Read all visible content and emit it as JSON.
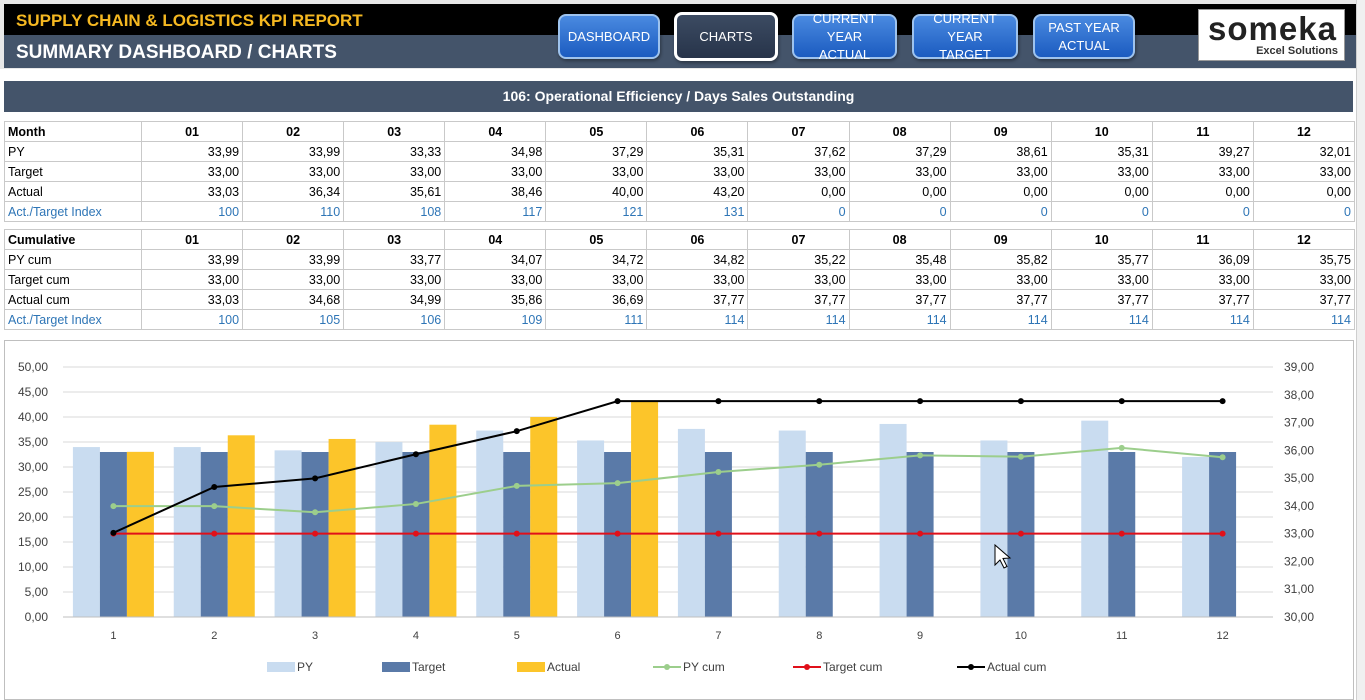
{
  "header": {
    "report_title": "SUPPLY CHAIN & LOGISTICS KPI REPORT",
    "page_title": "SUMMARY DASHBOARD / CHARTS",
    "nav": [
      {
        "label": "DASHBOARD"
      },
      {
        "label": "CHARTS"
      },
      {
        "label": "CURRENT YEAR\nACTUAL"
      },
      {
        "label": "CURRENT YEAR\nTARGET"
      },
      {
        "label": "PAST YEAR\nACTUAL"
      }
    ],
    "logo": {
      "word": "someka",
      "tagline": "Excel Solutions"
    }
  },
  "section_title": "106: Operational Efficiency / Days Sales Outstanding",
  "monthly_table": {
    "header_label": "Month",
    "months": [
      "01",
      "02",
      "03",
      "04",
      "05",
      "06",
      "07",
      "08",
      "09",
      "10",
      "11",
      "12"
    ],
    "rows": [
      {
        "label": "PY",
        "values": [
          "33,99",
          "33,99",
          "33,33",
          "34,98",
          "37,29",
          "35,31",
          "37,62",
          "37,29",
          "38,61",
          "35,31",
          "39,27",
          "32,01"
        ]
      },
      {
        "label": "Target",
        "values": [
          "33,00",
          "33,00",
          "33,00",
          "33,00",
          "33,00",
          "33,00",
          "33,00",
          "33,00",
          "33,00",
          "33,00",
          "33,00",
          "33,00"
        ]
      },
      {
        "label": "Actual",
        "values": [
          "33,03",
          "36,34",
          "35,61",
          "38,46",
          "40,00",
          "43,20",
          "0,00",
          "0,00",
          "0,00",
          "0,00",
          "0,00",
          "0,00"
        ]
      },
      {
        "label": "Act./Target Index",
        "values": [
          "100",
          "110",
          "108",
          "117",
          "121",
          "131",
          "0",
          "0",
          "0",
          "0",
          "0",
          "0"
        ]
      }
    ]
  },
  "cumulative_table": {
    "header_label": "Cumulative",
    "months": [
      "01",
      "02",
      "03",
      "04",
      "05",
      "06",
      "07",
      "08",
      "09",
      "10",
      "11",
      "12"
    ],
    "rows": [
      {
        "label": "PY cum",
        "values": [
          "33,99",
          "33,99",
          "33,77",
          "34,07",
          "34,72",
          "34,82",
          "35,22",
          "35,48",
          "35,82",
          "35,77",
          "36,09",
          "35,75"
        ]
      },
      {
        "label": "Target cum",
        "values": [
          "33,00",
          "33,00",
          "33,00",
          "33,00",
          "33,00",
          "33,00",
          "33,00",
          "33,00",
          "33,00",
          "33,00",
          "33,00",
          "33,00"
        ]
      },
      {
        "label": "Actual cum",
        "values": [
          "33,03",
          "34,68",
          "34,99",
          "35,86",
          "36,69",
          "37,77",
          "37,77",
          "37,77",
          "37,77",
          "37,77",
          "37,77",
          "37,77"
        ]
      },
      {
        "label": "Act./Target Index",
        "values": [
          "100",
          "105",
          "106",
          "109",
          "111",
          "114",
          "114",
          "114",
          "114",
          "114",
          "114",
          "114"
        ]
      }
    ]
  },
  "colors": {
    "header_black": "#000000",
    "header_slate": "#44546a",
    "title_gold": "#f5b821",
    "py": "#c9dcf0",
    "target": "#5a7aa8",
    "actual": "#fcc52a",
    "py_cum": "#9cce8c",
    "target_cum": "#e0101a",
    "actual_cum": "#000000",
    "index_blue": "#2e75b6"
  },
  "chart_data": {
    "type": "bar",
    "categories": [
      "1",
      "2",
      "3",
      "4",
      "5",
      "6",
      "7",
      "8",
      "9",
      "10",
      "11",
      "12"
    ],
    "y_left": {
      "range": [
        0,
        50
      ],
      "step": 5,
      "tick_labels": [
        "0,00",
        "5,00",
        "10,00",
        "15,00",
        "20,00",
        "25,00",
        "30,00",
        "35,00",
        "40,00",
        "45,00",
        "50,00"
      ]
    },
    "y_right": {
      "range": [
        30,
        39
      ],
      "step": 1,
      "tick_labels": [
        "30,00",
        "31,00",
        "32,00",
        "33,00",
        "34,00",
        "35,00",
        "36,00",
        "37,00",
        "38,00",
        "39,00"
      ]
    },
    "grid": true,
    "legend_position": "bottom",
    "series": [
      {
        "name": "PY",
        "kind": "bar",
        "axis": "left",
        "values": [
          33.99,
          33.99,
          33.33,
          34.98,
          37.29,
          35.31,
          37.62,
          37.29,
          38.61,
          35.31,
          39.27,
          32.01
        ]
      },
      {
        "name": "Target",
        "kind": "bar",
        "axis": "left",
        "values": [
          33,
          33,
          33,
          33,
          33,
          33,
          33,
          33,
          33,
          33,
          33,
          33
        ]
      },
      {
        "name": "Actual",
        "kind": "bar",
        "axis": "left",
        "values": [
          33.03,
          36.34,
          35.61,
          38.46,
          40.0,
          43.2,
          0,
          0,
          0,
          0,
          0,
          0
        ]
      },
      {
        "name": "PY cum",
        "kind": "line",
        "axis": "right",
        "values": [
          33.99,
          33.99,
          33.77,
          34.07,
          34.72,
          34.82,
          35.22,
          35.48,
          35.82,
          35.77,
          36.09,
          35.75
        ]
      },
      {
        "name": "Target cum",
        "kind": "line",
        "axis": "right",
        "values": [
          33,
          33,
          33,
          33,
          33,
          33,
          33,
          33,
          33,
          33,
          33,
          33
        ]
      },
      {
        "name": "Actual cum",
        "kind": "line",
        "axis": "right",
        "values": [
          33.03,
          34.68,
          34.99,
          35.86,
          36.69,
          37.77,
          37.77,
          37.77,
          37.77,
          37.77,
          37.77,
          37.77
        ]
      }
    ]
  }
}
